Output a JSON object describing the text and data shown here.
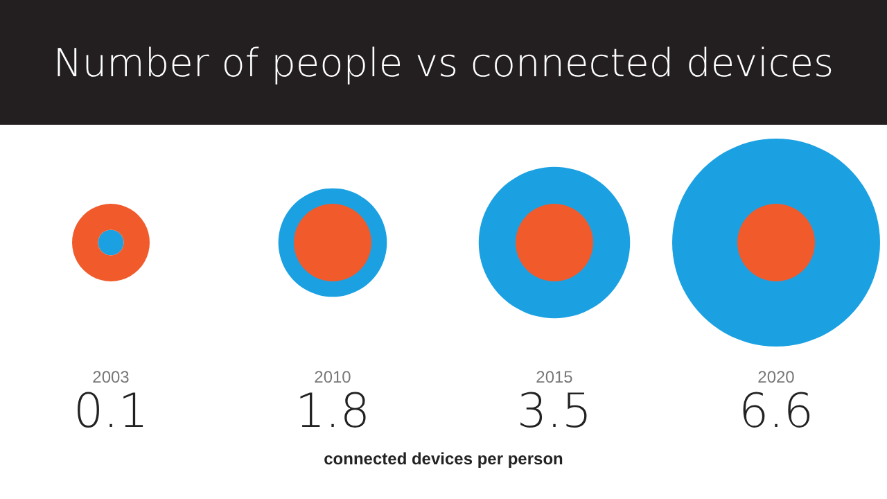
{
  "chart_data": {
    "type": "other",
    "title": "Number of people vs connected devices",
    "categories": [
      "2003",
      "2010",
      "2015",
      "2020"
    ],
    "series": [
      {
        "color": "#1ba1e2",
        "values": [
          0.1,
          1.8,
          3.5,
          6.6
        ]
      }
    ],
    "data_labels": true,
    "xlabel": "connected devices per person"
  }
}
